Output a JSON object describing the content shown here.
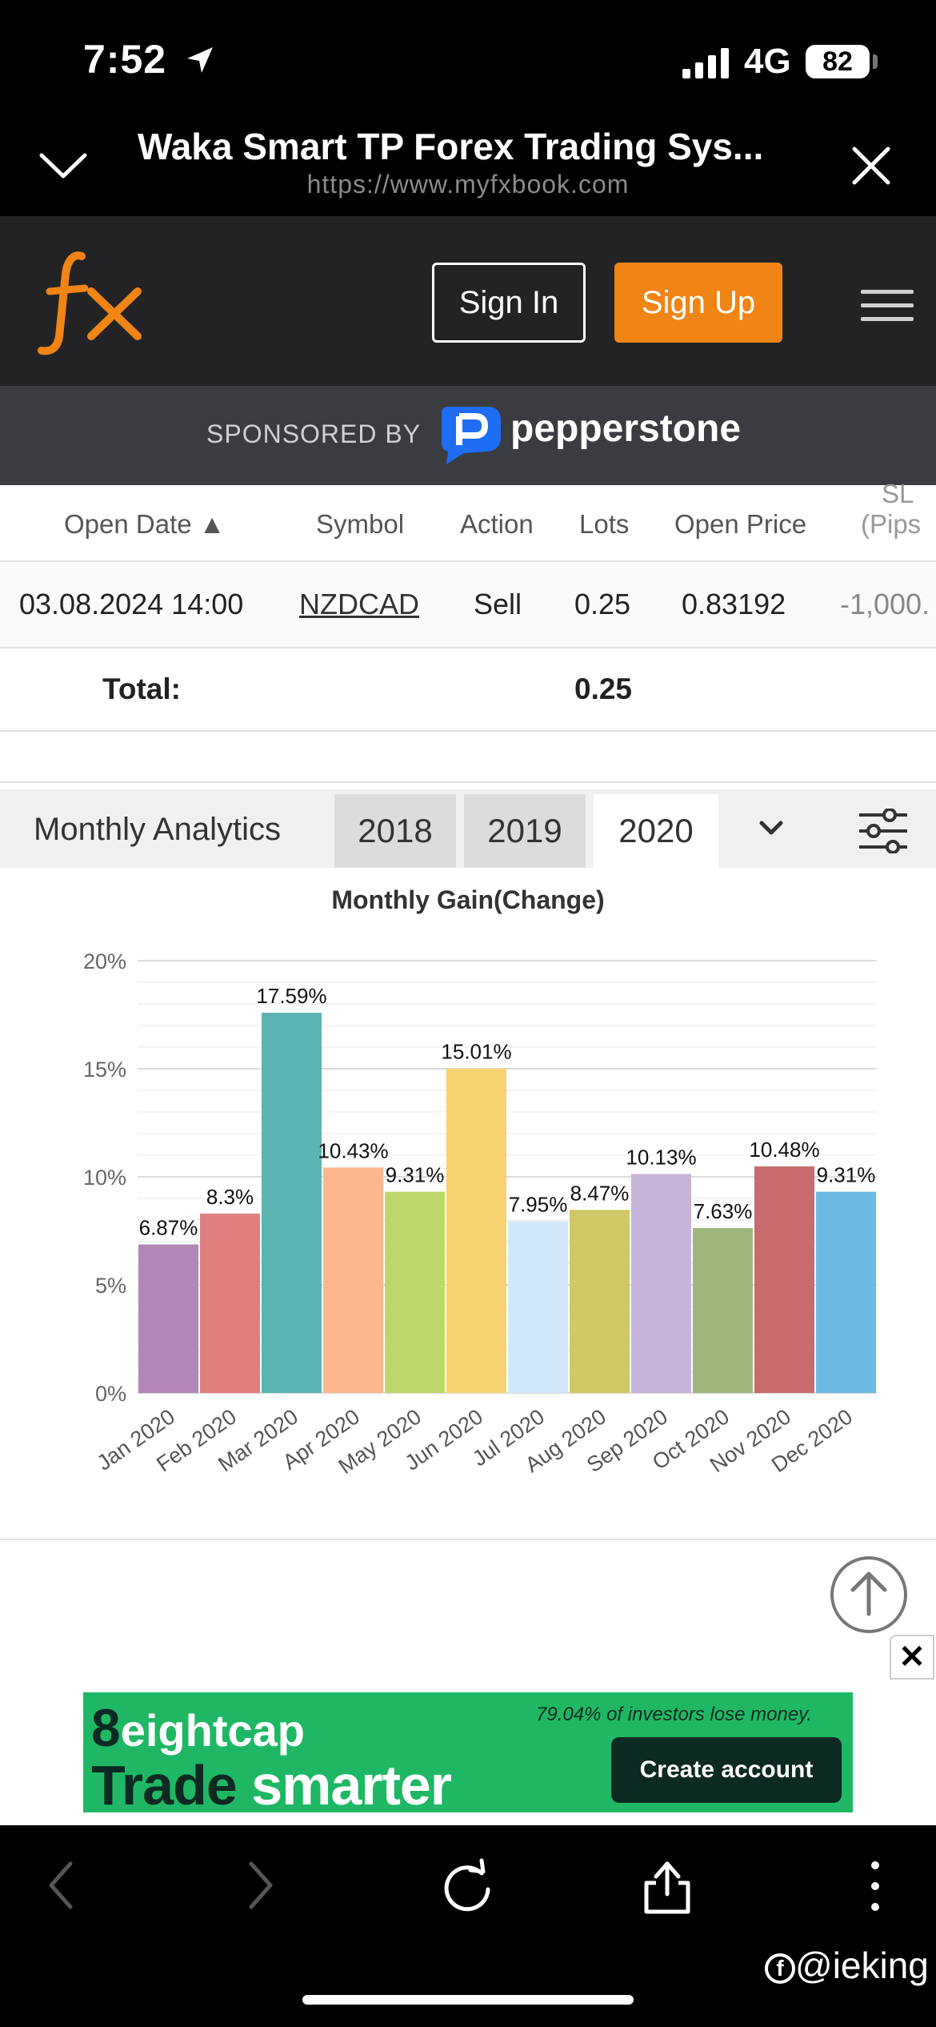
{
  "status_bar": {
    "time": "7:52",
    "network": "4G",
    "battery": "82"
  },
  "browser": {
    "title": "Waka Smart TP Forex Trading Sys...",
    "url": "https://www.myfxbook.com"
  },
  "site_nav": {
    "logo": "fx",
    "sign_in": "Sign In",
    "sign_up": "Sign Up"
  },
  "sponsor": {
    "label": "SPONSORED BY",
    "brand": "pepperstone"
  },
  "trades_table": {
    "headers": [
      "Open Date",
      "Symbol",
      "Action",
      "Lots",
      "Open Price",
      "SL",
      "(Pips"
    ],
    "row": {
      "open_date": "03.08.2024 14:00",
      "symbol": "NZDCAD",
      "action": "Sell",
      "lots": "0.25",
      "open_price": "0.83192",
      "sl": "-1,000."
    },
    "total_label": "Total:",
    "total_lots": "0.25"
  },
  "monthly_analytics": {
    "label": "Monthly Analytics",
    "years": [
      "2018",
      "2019",
      "2020"
    ],
    "selected_year": "2020"
  },
  "chart_data": {
    "type": "bar",
    "title": "Monthly Gain(Change)",
    "categories": [
      "Jan 2020",
      "Feb 2020",
      "Mar 2020",
      "Apr 2020",
      "May 2020",
      "Jun 2020",
      "Jul 2020",
      "Aug 2020",
      "Sep 2020",
      "Oct 2020",
      "Nov 2020",
      "Dec 2020"
    ],
    "values": [
      6.87,
      8.3,
      17.59,
      10.43,
      9.31,
      15.01,
      7.95,
      8.47,
      10.13,
      7.63,
      10.48,
      9.31
    ],
    "labels": [
      "6.87%",
      "8.3%",
      "17.59%",
      "10.43%",
      "9.31%",
      "15.01%",
      "7.95%",
      "8.47%",
      "10.13%",
      "7.63%",
      "10.48%",
      "9.31%"
    ],
    "colors": [
      "#b286b6",
      "#e07f80",
      "#5bb4b1",
      "#fdb78e",
      "#bed76c",
      "#f6d370",
      "#d4e8fb",
      "#cfc966",
      "#c7b4d9",
      "#9eb77d",
      "#c76b6e",
      "#6bbae3"
    ],
    "yticks": [
      "0%",
      "5%",
      "10%",
      "15%",
      "20%"
    ],
    "ylim": [
      0,
      20
    ],
    "xlabel": "",
    "ylabel": "",
    "grid": true
  },
  "ad": {
    "brand": "eightcap",
    "warning": "79.04% of investors lose money.",
    "tagline_1": "Trade",
    "tagline_2": "smarter",
    "cta": "Create account"
  },
  "watermark": "@ieking"
}
